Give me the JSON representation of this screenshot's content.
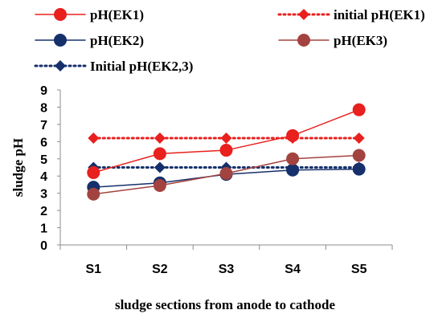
{
  "chart_data": {
    "type": "line",
    "categories": [
      "S1",
      "S2",
      "S3",
      "S4",
      "S5"
    ],
    "xlabel": "sludge sections from anode to cathode",
    "ylabel": "sludge pH",
    "ylim": [
      0,
      9
    ],
    "yticks": [
      "0",
      "1",
      "2",
      "3",
      "4",
      "5",
      "6",
      "7",
      "8",
      "9"
    ],
    "grid": false,
    "legend_position": "top",
    "series": [
      {
        "name": "pH(EK1)",
        "values": [
          4.2,
          5.3,
          5.5,
          6.35,
          7.85
        ],
        "color": "#e8201e",
        "marker": "circle",
        "dashed": false
      },
      {
        "name": "initial pH(EK1)",
        "values": [
          6.2,
          6.2,
          6.2,
          6.2,
          6.2
        ],
        "color": "#e8201e",
        "marker": "diamond",
        "dashed": true
      },
      {
        "name": "pH(EK2)",
        "values": [
          3.35,
          3.6,
          4.1,
          4.35,
          4.4
        ],
        "color": "#15306b",
        "marker": "circle",
        "dashed": false
      },
      {
        "name": "pH(EK3)",
        "values": [
          2.95,
          3.45,
          4.15,
          5.0,
          5.2
        ],
        "color": "#a3433f",
        "marker": "circle",
        "dashed": false
      },
      {
        "name": "Initial pH(EK2,3)",
        "values": [
          4.5,
          4.5,
          4.5,
          4.5,
          4.5
        ],
        "color": "#15306b",
        "marker": "diamond",
        "dashed": true
      }
    ]
  }
}
